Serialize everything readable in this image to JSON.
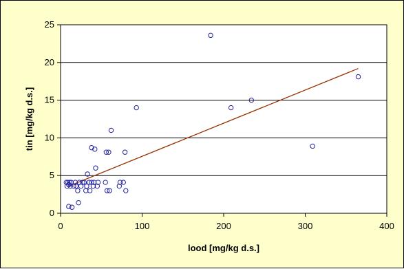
{
  "chart_data": {
    "type": "scatter",
    "title": "",
    "xlabel": "lood [mg/kg d.s.]",
    "ylabel": "tin [mg/kg d.s.]",
    "xlim": [
      0,
      400
    ],
    "ylim": [
      0,
      25
    ],
    "xticks": [
      0,
      100,
      200,
      300,
      400
    ],
    "yticks": [
      0,
      5,
      10,
      15,
      20,
      25
    ],
    "grid": "horizontal",
    "legend": "none",
    "colors": {
      "background": "#ffffcc",
      "plot_area": "#ffffff",
      "marker": "#1f1fa0",
      "trendline": "#993300",
      "grid": "#000000"
    },
    "series": [
      {
        "marker": "open-circle",
        "points": [
          [
            7,
            4.1
          ],
          [
            8,
            3.6
          ],
          [
            9,
            4.1
          ],
          [
            10,
            3.8
          ],
          [
            11,
            4.1
          ],
          [
            12,
            3.6
          ],
          [
            13,
            4.1
          ],
          [
            10,
            0.9
          ],
          [
            14,
            0.8
          ],
          [
            16,
            3.6
          ],
          [
            18,
            4.1
          ],
          [
            19,
            3.6
          ],
          [
            21,
            3.0
          ],
          [
            22,
            1.4
          ],
          [
            23,
            4.1
          ],
          [
            25,
            3.6
          ],
          [
            27,
            4.1
          ],
          [
            29,
            4.1
          ],
          [
            31,
            3.0
          ],
          [
            32,
            3.6
          ],
          [
            33,
            5.2
          ],
          [
            35,
            4.1
          ],
          [
            36,
            3.0
          ],
          [
            38,
            4.1
          ],
          [
            38,
            8.7
          ],
          [
            40,
            3.6
          ],
          [
            41,
            4.1
          ],
          [
            42,
            8.5
          ],
          [
            43,
            6.0
          ],
          [
            45,
            3.6
          ],
          [
            46,
            4.1
          ],
          [
            55,
            4.1
          ],
          [
            56,
            8.1
          ],
          [
            57,
            3.0
          ],
          [
            60,
            3.0
          ],
          [
            59,
            8.1
          ],
          [
            62,
            11.0
          ],
          [
            72,
            3.6
          ],
          [
            73,
            4.1
          ],
          [
            77,
            4.1
          ],
          [
            79,
            8.1
          ],
          [
            80,
            3.0
          ],
          [
            93,
            14.0
          ],
          [
            184,
            23.6
          ],
          [
            209,
            14.0
          ],
          [
            234,
            15.0
          ],
          [
            309,
            8.9
          ],
          [
            365,
            18.1
          ]
        ]
      }
    ],
    "trendline": {
      "type": "linear",
      "x": [
        10,
        365
      ],
      "y": [
        3.6,
        19.2
      ]
    }
  }
}
